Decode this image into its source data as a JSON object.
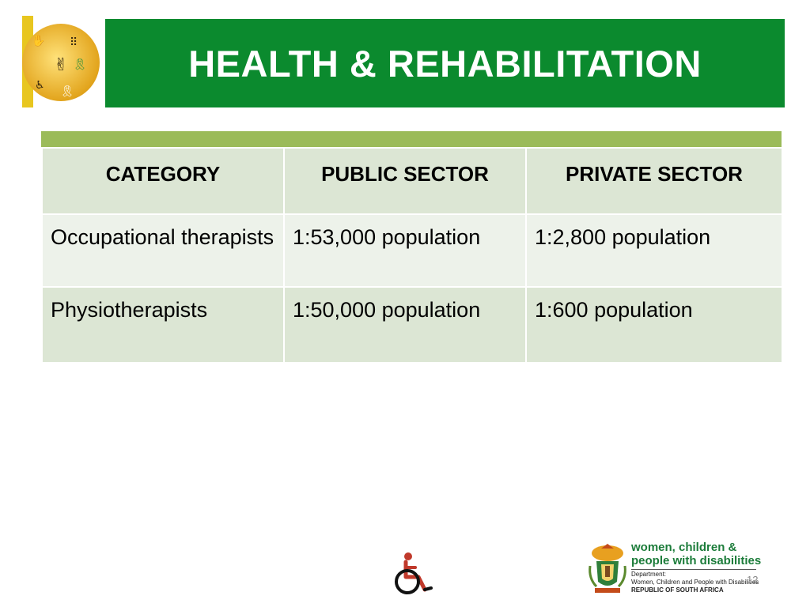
{
  "slide": {
    "title": "HEALTH & REHABILITATION",
    "page_number": "12"
  },
  "colors": {
    "title_bar": "#0b8a2e",
    "table_header_bar": "#9bbb59",
    "row_dark": "#dce6d4",
    "row_light": "#edf2ea",
    "logo_accent": "#e8c61f"
  },
  "table": {
    "headers": [
      "CATEGORY",
      "PUBLIC SECTOR",
      "PRIVATE SECTOR"
    ],
    "rows": [
      [
        "Occupational therapists",
        "1:53,000 population",
        "1:2,800 population"
      ],
      [
        "Physiotherapists",
        "1:50,000 population",
        "1:600 population"
      ]
    ]
  },
  "footer": {
    "icons": [
      "wheelchair-icon",
      "coat-of-arms-icon"
    ],
    "dept_line1": "women, children &",
    "dept_line2": "people with disabilities",
    "dept_sub1": "Department:",
    "dept_sub2": "Women, Children and People with Disabilities",
    "dept_sub3": "REPUBLIC OF SOUTH AFRICA"
  }
}
